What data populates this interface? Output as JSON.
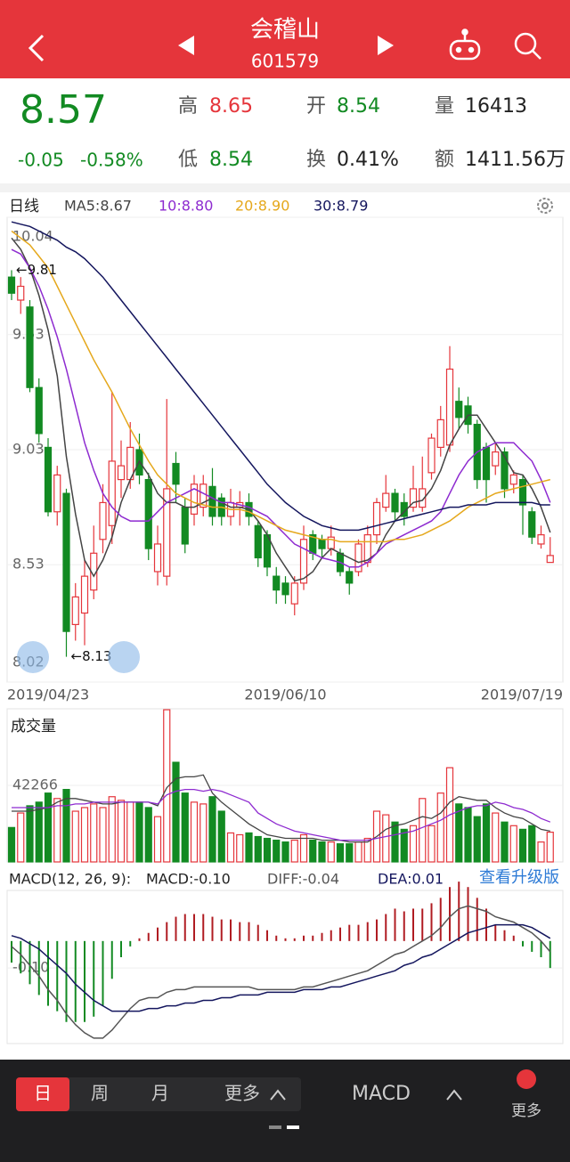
{
  "header": {
    "title": "会稽山",
    "code": "601579"
  },
  "quote": {
    "price": "8.57",
    "change": "-0.05",
    "change_pct": "-0.58%",
    "high_label": "高",
    "high": "8.65",
    "open_label": "开",
    "open": "8.54",
    "volume_label": "量",
    "volume": "16413",
    "low_label": "低",
    "low": "8.54",
    "turnover_label": "换",
    "turnover": "0.41%",
    "amount_label": "额",
    "amount": "1411.56万"
  },
  "chart_data": [
    {
      "type": "candlestick",
      "title": "日线",
      "categories": [
        "2019/04/23",
        null,
        null,
        null,
        null,
        null,
        null,
        null,
        null,
        null,
        null,
        null,
        null,
        null,
        null,
        null,
        null,
        null,
        null,
        null,
        null,
        null,
        null,
        null,
        null,
        null,
        null,
        null,
        null,
        null,
        "2019/06/10",
        null,
        null,
        null,
        null,
        null,
        null,
        null,
        null,
        null,
        null,
        null,
        null,
        null,
        null,
        null,
        null,
        null,
        null,
        null,
        null,
        null,
        null,
        null,
        null,
        null,
        null,
        null,
        null,
        "2019/07/19"
      ],
      "open": [
        9.78,
        9.68,
        9.65,
        9.3,
        9.04,
        8.76,
        8.84,
        8.27,
        8.32,
        8.42,
        8.64,
        8.7,
        8.9,
        8.9,
        9.03,
        8.9,
        8.5,
        8.48,
        8.97,
        8.78,
        8.75,
        8.78,
        8.87,
        8.82,
        8.74,
        8.78,
        8.8,
        8.7,
        8.66,
        8.48,
        8.45,
        8.36,
        8.45,
        8.66,
        8.64,
        8.6,
        8.58,
        8.5,
        8.5,
        8.54,
        8.66,
        8.78,
        8.84,
        8.8,
        8.78,
        8.78,
        8.93,
        9.04,
        9.05,
        9.24,
        9.22,
        9.14,
        9.04,
        8.96,
        9.02,
        8.88,
        8.9,
        8.76,
        8.62,
        8.54
      ],
      "high": [
        9.81,
        9.78,
        9.68,
        9.34,
        9.08,
        8.96,
        8.86,
        8.45,
        8.55,
        8.7,
        8.88,
        9.28,
        9.07,
        9.15,
        9.1,
        8.93,
        8.7,
        9.25,
        9.02,
        8.82,
        8.92,
        8.92,
        8.95,
        8.84,
        8.86,
        8.85,
        8.84,
        8.72,
        8.68,
        8.52,
        8.48,
        8.48,
        8.7,
        8.68,
        8.66,
        8.7,
        8.6,
        8.52,
        8.64,
        8.7,
        8.82,
        8.92,
        8.86,
        8.84,
        8.96,
        9.0,
        9.1,
        9.22,
        9.48,
        9.3,
        9.26,
        9.16,
        9.06,
        9.06,
        9.04,
        8.94,
        8.92,
        8.78,
        8.7,
        8.65
      ],
      "low": [
        9.68,
        9.62,
        9.28,
        9.06,
        8.74,
        8.7,
        8.13,
        8.2,
        8.18,
        8.38,
        8.58,
        8.62,
        8.82,
        8.86,
        8.88,
        8.55,
        8.44,
        8.44,
        8.8,
        8.58,
        8.7,
        8.74,
        8.7,
        8.7,
        8.7,
        8.7,
        8.7,
        8.52,
        8.48,
        8.36,
        8.36,
        8.31,
        8.42,
        8.55,
        8.56,
        8.57,
        8.48,
        8.4,
        8.48,
        8.52,
        8.62,
        8.76,
        8.72,
        8.7,
        8.76,
        8.76,
        8.9,
        9.0,
        9.02,
        9.12,
        9.1,
        8.86,
        8.8,
        8.92,
        8.82,
        8.84,
        8.66,
        8.62,
        8.6,
        8.54
      ],
      "close": [
        9.71,
        9.74,
        9.3,
        9.1,
        8.76,
        8.92,
        8.24,
        8.39,
        8.48,
        8.58,
        8.8,
        8.98,
        8.96,
        9.04,
        8.92,
        8.6,
        8.62,
        8.86,
        8.88,
        8.62,
        8.88,
        8.88,
        8.74,
        8.74,
        8.8,
        8.8,
        8.74,
        8.56,
        8.52,
        8.42,
        8.4,
        8.45,
        8.64,
        8.58,
        8.6,
        8.65,
        8.5,
        8.45,
        8.62,
        8.66,
        8.8,
        8.84,
        8.76,
        8.74,
        8.86,
        8.86,
        9.08,
        9.16,
        9.38,
        9.17,
        9.14,
        8.9,
        8.9,
        9.02,
        8.86,
        8.92,
        8.79,
        8.65,
        8.66,
        8.57
      ],
      "up_color": "#e5353b",
      "down_color": "#128a22",
      "series": [
        {
          "name": "MA5:8.67",
          "color": "#444444",
          "values": [
            9.95,
            9.9,
            9.82,
            9.7,
            9.55,
            9.35,
            9.0,
            8.75,
            8.55,
            8.48,
            8.55,
            8.65,
            8.8,
            8.9,
            8.98,
            8.92,
            8.84,
            8.8,
            8.8,
            8.78,
            8.78,
            8.8,
            8.82,
            8.8,
            8.78,
            8.78,
            8.77,
            8.72,
            8.66,
            8.58,
            8.52,
            8.46,
            8.47,
            8.5,
            8.56,
            8.6,
            8.58,
            8.56,
            8.54,
            8.55,
            8.58,
            8.66,
            8.72,
            8.76,
            8.8,
            8.81,
            8.86,
            8.94,
            9.05,
            9.12,
            9.18,
            9.18,
            9.12,
            9.06,
            9.0,
            8.93,
            8.92,
            8.86,
            8.78,
            8.67
          ]
        },
        {
          "name": "10:8.80",
          "color": "#8e2bd0",
          "values": [
            9.9,
            9.88,
            9.82,
            9.74,
            9.64,
            9.52,
            9.38,
            9.22,
            9.06,
            8.94,
            8.84,
            8.78,
            8.74,
            8.72,
            8.72,
            8.72,
            8.76,
            8.8,
            8.82,
            8.84,
            8.86,
            8.84,
            8.82,
            8.8,
            8.8,
            8.79,
            8.78,
            8.76,
            8.74,
            8.7,
            8.66,
            8.62,
            8.6,
            8.58,
            8.56,
            8.55,
            8.54,
            8.52,
            8.52,
            8.54,
            8.58,
            8.62,
            8.64,
            8.66,
            8.68,
            8.7,
            8.72,
            8.76,
            8.84,
            8.92,
            8.98,
            9.02,
            9.04,
            9.06,
            9.06,
            9.06,
            9.02,
            8.98,
            8.9,
            8.8
          ]
        },
        {
          "name": "20:8.90",
          "color": "#e5a81c",
          "values": [
            9.98,
            9.95,
            9.92,
            9.87,
            9.82,
            9.74,
            9.66,
            9.58,
            9.5,
            9.42,
            9.35,
            9.28,
            9.2,
            9.12,
            9.05,
            8.98,
            8.92,
            8.88,
            8.84,
            8.82,
            8.8,
            8.79,
            8.78,
            8.78,
            8.77,
            8.77,
            8.76,
            8.74,
            8.72,
            8.7,
            8.68,
            8.67,
            8.66,
            8.65,
            8.64,
            8.64,
            8.63,
            8.63,
            8.63,
            8.63,
            8.63,
            8.63,
            8.64,
            8.64,
            8.65,
            8.66,
            8.68,
            8.7,
            8.72,
            8.75,
            8.78,
            8.8,
            8.82,
            8.84,
            8.85,
            8.86,
            8.87,
            8.88,
            8.89,
            8.9
          ]
        },
        {
          "name": "30:8.79",
          "color": "#14165e",
          "values": [
            10.02,
            10.01,
            10.0,
            9.98,
            9.96,
            9.94,
            9.91,
            9.89,
            9.86,
            9.82,
            9.78,
            9.73,
            9.68,
            9.63,
            9.58,
            9.53,
            9.48,
            9.43,
            9.38,
            9.33,
            9.28,
            9.23,
            9.18,
            9.13,
            9.08,
            9.03,
            8.98,
            8.93,
            8.88,
            8.84,
            8.8,
            8.77,
            8.74,
            8.72,
            8.7,
            8.69,
            8.68,
            8.68,
            8.68,
            8.69,
            8.7,
            8.71,
            8.72,
            8.73,
            8.74,
            8.75,
            8.76,
            8.77,
            8.78,
            8.78,
            8.79,
            8.79,
            8.79,
            8.8,
            8.8,
            8.8,
            8.8,
            8.8,
            8.79,
            8.79
          ]
        }
      ],
      "ylim": [
        8.02,
        10.04
      ],
      "yticks": [
        8.02,
        8.53,
        9.03,
        9.53,
        10.04
      ],
      "annotations": [
        {
          "label": "←9.81",
          "value": 9.81
        },
        {
          "label": "←8.13",
          "value": 8.13
        }
      ]
    },
    {
      "type": "bar",
      "title": "成交量",
      "values": [
        19000,
        27000,
        31000,
        33000,
        38000,
        35000,
        40000,
        28000,
        30000,
        32000,
        30000,
        36000,
        34000,
        33000,
        33000,
        30000,
        25000,
        84000,
        55000,
        38000,
        33000,
        32000,
        36000,
        28000,
        16000,
        15000,
        16000,
        14000,
        13000,
        12000,
        11000,
        12000,
        15000,
        12000,
        11000,
        11000,
        10000,
        10000,
        11000,
        13000,
        28000,
        26000,
        22000,
        18000,
        20000,
        35000,
        20000,
        38000,
        52000,
        32000,
        30000,
        25000,
        32000,
        27000,
        22000,
        20000,
        18000,
        20000,
        11000,
        16413
      ],
      "series": [
        {
          "color": "#444444",
          "values": [
            28000,
            28000,
            28000,
            29000,
            30000,
            33000,
            35000,
            35000,
            34000,
            33000,
            32000,
            32000,
            33000,
            33000,
            33000,
            33000,
            31000,
            41000,
            46000,
            47000,
            47000,
            48000,
            38000,
            33000,
            29000,
            25000,
            21000,
            18000,
            15000,
            14000,
            13000,
            13000,
            13000,
            13000,
            12000,
            12000,
            12000,
            11000,
            11000,
            11000,
            14000,
            18000,
            20000,
            21000,
            23000,
            25000,
            24000,
            27000,
            33000,
            36000,
            35000,
            34000,
            34000,
            30000,
            27000,
            25000,
            24000,
            21000,
            18000,
            17000
          ]
        },
        {
          "color": "#8e2bd0",
          "values": [
            30000,
            30000,
            30000,
            30000,
            30000,
            31000,
            31000,
            32000,
            32000,
            33000,
            33000,
            33000,
            33000,
            33000,
            33000,
            33000,
            32000,
            37000,
            39000,
            40000,
            40000,
            39000,
            40000,
            39000,
            37000,
            35000,
            33000,
            27000,
            24000,
            21000,
            19000,
            17000,
            16000,
            15000,
            14000,
            13000,
            12000,
            12000,
            12000,
            12000,
            13000,
            14000,
            15000,
            16000,
            17000,
            19000,
            21000,
            23000,
            26000,
            28000,
            30000,
            31000,
            31000,
            33000,
            32000,
            30000,
            29000,
            27000,
            24000,
            22000
          ]
        }
      ],
      "ylim": [
        0,
        84532
      ],
      "yticks": [
        42266
      ]
    },
    {
      "type": "macd",
      "title": "MACD(12, 26, 9):",
      "macd_label": "MACD:-0.10",
      "link": "查看升级版",
      "values": [
        -0.08,
        -0.12,
        -0.16,
        -0.2,
        -0.24,
        -0.26,
        -0.3,
        -0.3,
        -0.3,
        -0.28,
        -0.24,
        -0.14,
        -0.06,
        -0.02,
        0.01,
        0.03,
        0.05,
        0.07,
        0.09,
        0.1,
        0.1,
        0.1,
        0.09,
        0.08,
        0.08,
        0.07,
        0.07,
        0.06,
        0.04,
        0.02,
        0.01,
        0.01,
        0.02,
        0.02,
        0.03,
        0.04,
        0.05,
        0.06,
        0.06,
        0.07,
        0.08,
        0.1,
        0.12,
        0.11,
        0.12,
        0.12,
        0.14,
        0.16,
        0.2,
        0.22,
        0.2,
        0.16,
        0.12,
        0.06,
        0.04,
        0.02,
        -0.02,
        -0.04,
        -0.06,
        -0.1
      ],
      "up_color": "#b01c22",
      "down_color": "#128a22",
      "series": [
        {
          "name": "DIFF:-0.04",
          "color": "#555555",
          "values": [
            -0.02,
            -0.05,
            -0.09,
            -0.13,
            -0.18,
            -0.22,
            -0.27,
            -0.31,
            -0.34,
            -0.36,
            -0.36,
            -0.33,
            -0.29,
            -0.25,
            -0.22,
            -0.21,
            -0.21,
            -0.19,
            -0.18,
            -0.18,
            -0.17,
            -0.17,
            -0.17,
            -0.17,
            -0.17,
            -0.17,
            -0.17,
            -0.18,
            -0.18,
            -0.18,
            -0.18,
            -0.18,
            -0.17,
            -0.17,
            -0.16,
            -0.15,
            -0.14,
            -0.13,
            -0.12,
            -0.11,
            -0.09,
            -0.07,
            -0.05,
            -0.04,
            -0.02,
            0.0,
            0.02,
            0.05,
            0.09,
            0.12,
            0.13,
            0.12,
            0.11,
            0.09,
            0.08,
            0.07,
            0.05,
            0.03,
            0.0,
            -0.04
          ]
        },
        {
          "name": "DEA:0.01",
          "color": "#14165e",
          "values": [
            0.02,
            0.01,
            -0.01,
            -0.03,
            -0.06,
            -0.09,
            -0.12,
            -0.16,
            -0.19,
            -0.22,
            -0.24,
            -0.26,
            -0.26,
            -0.26,
            -0.26,
            -0.25,
            -0.25,
            -0.24,
            -0.24,
            -0.23,
            -0.23,
            -0.22,
            -0.22,
            -0.21,
            -0.21,
            -0.2,
            -0.2,
            -0.2,
            -0.19,
            -0.19,
            -0.19,
            -0.19,
            -0.18,
            -0.18,
            -0.18,
            -0.17,
            -0.17,
            -0.16,
            -0.15,
            -0.14,
            -0.13,
            -0.12,
            -0.11,
            -0.09,
            -0.08,
            -0.06,
            -0.05,
            -0.03,
            -0.01,
            0.01,
            0.03,
            0.04,
            0.05,
            0.06,
            0.06,
            0.06,
            0.06,
            0.05,
            0.03,
            0.01
          ]
        }
      ],
      "ylim": [
        -0.38,
        0.27
      ],
      "yticks": [
        {
          "value": -0.1,
          "label": "-0.10"
        }
      ]
    }
  ],
  "toolbar": {
    "tabs": [
      "日",
      "周",
      "月",
      "更多"
    ],
    "indicator": "MACD",
    "more": "更多"
  }
}
